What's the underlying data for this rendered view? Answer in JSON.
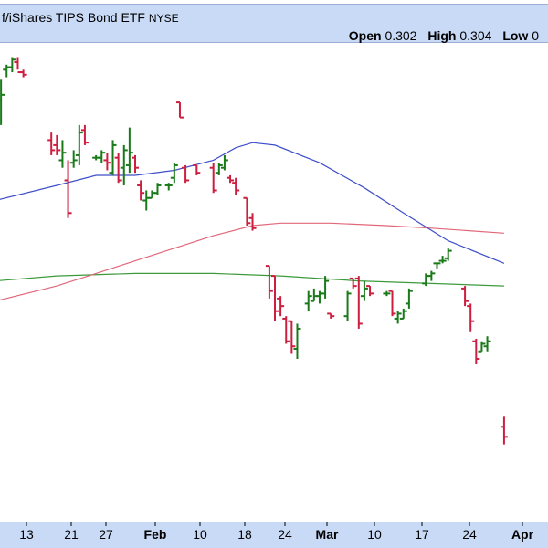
{
  "header": {
    "title": "f/iShares TIPS Bond ETF",
    "exchange": "NYSE",
    "open_label": "Open",
    "open_value": "0.302",
    "high_label": "High",
    "high_value": "0.304",
    "low_label": "Low",
    "low_value": "0"
  },
  "colors": {
    "up": "#1a7a1a",
    "down": "#cc1f3f",
    "ma_short": "#3f4fc8",
    "ma_mid": "#e0687a",
    "ma_long": "#3c9a3c",
    "header_bg": "#c9daf6"
  },
  "chart_data": {
    "type": "ohlc",
    "x_tick_labels": [
      "13",
      "21",
      "27",
      "Feb",
      "10",
      "18",
      "24",
      "Mar",
      "10",
      "17",
      "24",
      "Apr"
    ],
    "bars": [
      {
        "d": "Jan 09",
        "o": 0.293,
        "h": 0.2943,
        "l": 0.2936,
        "c": 0.294
      },
      {
        "d": "Jan 10",
        "o": 0.299,
        "h": 0.2998,
        "l": 0.298,
        "c": 0.2992
      },
      {
        "d": "Jan 11",
        "o": 0.3002,
        "h": 0.3004,
        "l": 0.2999,
        "c": 0.3003
      },
      {
        "d": "Jan 12",
        "o": 0.3003,
        "h": 0.3007,
        "l": 0.3001,
        "c": 0.3006
      },
      {
        "d": "Jan 13",
        "o": 0.3005,
        "h": 0.3007,
        "l": 0.3002,
        "c": 0.3001
      },
      {
        "d": "Jan 14",
        "o": 0.3001,
        "h": 0.3002,
        "l": 0.2999,
        "c": 0.3
      },
      {
        "d": "Jan 19",
        "o": 0.2974,
        "h": 0.2977,
        "l": 0.2968,
        "c": 0.297
      },
      {
        "d": "Jan 20",
        "o": 0.2972,
        "h": 0.2976,
        "l": 0.2968,
        "c": 0.297
      },
      {
        "d": "Jan 21",
        "o": 0.2966,
        "h": 0.2974,
        "l": 0.2963,
        "c": 0.2969
      },
      {
        "d": "Jan 22",
        "o": 0.2958,
        "h": 0.2966,
        "l": 0.2943,
        "c": 0.2945
      },
      {
        "d": "Jan 23",
        "o": 0.2965,
        "h": 0.297,
        "l": 0.2963,
        "c": 0.2966
      },
      {
        "d": "Jan 24",
        "o": 0.2968,
        "h": 0.298,
        "l": 0.2964,
        "c": 0.2977
      },
      {
        "d": "Jan 25",
        "o": 0.2978,
        "h": 0.298,
        "l": 0.2972,
        "c": 0.2973
      },
      {
        "d": "Jan 27",
        "o": 0.2967,
        "h": 0.2968,
        "l": 0.2966,
        "c": 0.2967
      },
      {
        "d": "Jan 28",
        "o": 0.2967,
        "h": 0.297,
        "l": 0.2965,
        "c": 0.2969
      },
      {
        "d": "Jan 29",
        "o": 0.2966,
        "h": 0.2969,
        "l": 0.2962,
        "c": 0.2965
      },
      {
        "d": "Jan 30",
        "o": 0.2961,
        "h": 0.2974,
        "l": 0.296,
        "c": 0.2972
      },
      {
        "d": "Jan 31",
        "o": 0.2967,
        "h": 0.2969,
        "l": 0.2957,
        "c": 0.2958
      },
      {
        "d": "Feb 01",
        "o": 0.2963,
        "h": 0.2972,
        "l": 0.2956,
        "c": 0.297
      },
      {
        "d": "Feb 02",
        "o": 0.2964,
        "h": 0.2979,
        "l": 0.2961,
        "c": 0.2969
      },
      {
        "d": "Feb 03",
        "o": 0.2967,
        "h": 0.2968,
        "l": 0.2961,
        "c": 0.2963
      },
      {
        "d": "Feb 04",
        "o": 0.2956,
        "h": 0.2958,
        "l": 0.295,
        "c": 0.2953
      },
      {
        "d": "Feb 05",
        "o": 0.295,
        "h": 0.2954,
        "l": 0.2946,
        "c": 0.2951
      },
      {
        "d": "Feb 06",
        "o": 0.2951,
        "h": 0.2954,
        "l": 0.2951,
        "c": 0.2953
      },
      {
        "d": "Feb 07",
        "o": 0.2953,
        "h": 0.2957,
        "l": 0.2952,
        "c": 0.2956
      },
      {
        "d": "Feb 09",
        "o": 0.2956,
        "h": 0.2957,
        "l": 0.2954,
        "c": 0.2956
      },
      {
        "d": "Feb 10",
        "o": 0.2959,
        "h": 0.2965,
        "l": 0.2957,
        "c": 0.2964
      },
      {
        "d": "Feb 11",
        "o": 0.2989,
        "h": 0.2989,
        "l": 0.2983,
        "c": 0.2983
      },
      {
        "d": "Feb 12",
        "o": 0.2963,
        "h": 0.2964,
        "l": 0.2957,
        "c": 0.2958
      },
      {
        "d": "Feb 14",
        "o": 0.2964,
        "h": 0.2964,
        "l": 0.296,
        "c": 0.2961
      },
      {
        "d": "Feb 17",
        "o": 0.2963,
        "h": 0.2965,
        "l": 0.2953,
        "c": 0.2954
      },
      {
        "d": "Feb 18",
        "o": 0.2961,
        "h": 0.2965,
        "l": 0.296,
        "c": 0.2964
      },
      {
        "d": "Feb 19",
        "o": 0.2963,
        "h": 0.2968,
        "l": 0.2962,
        "c": 0.2966
      },
      {
        "d": "Feb 20",
        "o": 0.2959,
        "h": 0.296,
        "l": 0.2957,
        "c": 0.2958
      },
      {
        "d": "Feb 21",
        "o": 0.2957,
        "h": 0.2959,
        "l": 0.2952,
        "c": 0.2954
      },
      {
        "d": "Feb 23",
        "o": 0.2951,
        "h": 0.2951,
        "l": 0.294,
        "c": 0.2941
      },
      {
        "d": "Feb 24",
        "o": 0.2943,
        "h": 0.2945,
        "l": 0.2938,
        "c": 0.2939
      },
      {
        "d": "Feb 27",
        "o": 0.2924,
        "h": 0.2924,
        "l": 0.2911,
        "c": 0.2914
      },
      {
        "d": "Feb 28",
        "o": 0.292,
        "h": 0.292,
        "l": 0.2902,
        "c": 0.2906
      },
      {
        "d": "Mar 01",
        "o": 0.2911,
        "h": 0.2912,
        "l": 0.2904,
        "c": 0.2908
      },
      {
        "d": "Mar 02",
        "o": 0.2903,
        "h": 0.2904,
        "l": 0.2893,
        "c": 0.2894
      },
      {
        "d": "Mar 03",
        "o": 0.2902,
        "h": 0.2902,
        "l": 0.2889,
        "c": 0.2892
      },
      {
        "d": "Mar 04",
        "o": 0.2891,
        "h": 0.2901,
        "l": 0.2887,
        "c": 0.2899
      },
      {
        "d": "Mar 06",
        "o": 0.2909,
        "h": 0.2914,
        "l": 0.2906,
        "c": 0.2912
      },
      {
        "d": "Mar 07",
        "o": 0.291,
        "h": 0.2915,
        "l": 0.291,
        "c": 0.2912
      },
      {
        "d": "Mar 08",
        "o": 0.2912,
        "h": 0.2914,
        "l": 0.2909,
        "c": 0.2913
      },
      {
        "d": "Mar 09",
        "o": 0.2913,
        "h": 0.292,
        "l": 0.2911,
        "c": 0.2918
      },
      {
        "d": "Mar 10",
        "o": 0.2905,
        "h": 0.2905,
        "l": 0.2903,
        "c": 0.2904
      },
      {
        "d": "Mar 13",
        "o": 0.2904,
        "h": 0.2914,
        "l": 0.2902,
        "c": 0.2913
      },
      {
        "d": "Mar 14",
        "o": 0.2919,
        "h": 0.2919,
        "l": 0.2915,
        "c": 0.2916
      },
      {
        "d": "Mar 15",
        "o": 0.2919,
        "h": 0.292,
        "l": 0.2899,
        "c": 0.2901
      },
      {
        "d": "Mar 16",
        "o": 0.2912,
        "h": 0.2918,
        "l": 0.291,
        "c": 0.2915
      },
      {
        "d": "Mar 17",
        "o": 0.2916,
        "h": 0.2916,
        "l": 0.2912,
        "c": 0.2913
      },
      {
        "d": "Mar 20",
        "o": 0.2913,
        "h": 0.2914,
        "l": 0.2912,
        "c": 0.2913
      },
      {
        "d": "Mar 21",
        "o": 0.2914,
        "h": 0.2914,
        "l": 0.2904,
        "c": 0.2905
      },
      {
        "d": "Mar 22",
        "o": 0.2903,
        "h": 0.2906,
        "l": 0.2901,
        "c": 0.2905
      },
      {
        "d": "Mar 23",
        "o": 0.2903,
        "h": 0.2907,
        "l": 0.2903,
        "c": 0.2906
      },
      {
        "d": "Mar 24",
        "o": 0.2909,
        "h": 0.2915,
        "l": 0.2907,
        "c": 0.2914
      },
      {
        "d": "Mar 27",
        "o": 0.2917,
        "h": 0.2921,
        "l": 0.2916,
        "c": 0.292
      },
      {
        "d": "Mar 28",
        "o": 0.292,
        "h": 0.2922,
        "l": 0.2918,
        "c": 0.2921
      },
      {
        "d": "Mar 29",
        "o": 0.2925,
        "h": 0.2925,
        "l": 0.2923,
        "c": 0.2925
      },
      {
        "d": "Mar 30",
        "o": 0.2926,
        "h": 0.2928,
        "l": 0.2925,
        "c": 0.2926
      },
      {
        "d": "Mar 31",
        "o": 0.2927,
        "h": 0.2931,
        "l": 0.2926,
        "c": 0.293
      },
      {
        "d": "Apr 03",
        "o": 0.2915,
        "h": 0.2916,
        "l": 0.2908,
        "c": 0.291
      },
      {
        "d": "Apr 04",
        "o": 0.2908,
        "h": 0.2909,
        "l": 0.2898,
        "c": 0.2902
      },
      {
        "d": "Apr 05",
        "o": 0.2894,
        "h": 0.2895,
        "l": 0.2885,
        "c": 0.2887
      },
      {
        "d": "Apr 06",
        "o": 0.289,
        "h": 0.2894,
        "l": 0.289,
        "c": 0.2893
      },
      {
        "d": "Apr 07",
        "o": 0.2892,
        "h": 0.2896,
        "l": 0.289,
        "c": 0.2894
      },
      {
        "d": "Apr 10",
        "o": 0.286,
        "h": 0.2864,
        "l": 0.2853,
        "c": 0.2856
      }
    ],
    "ma_short": [
      {
        "d": "Jan 09",
        "v": 0.295
      },
      {
        "d": "Jan 20",
        "v": 0.2956
      },
      {
        "d": "Jan 27",
        "v": 0.296
      },
      {
        "d": "Feb 03",
        "v": 0.296
      },
      {
        "d": "Feb 10",
        "v": 0.2962
      },
      {
        "d": "Feb 17",
        "v": 0.2966
      },
      {
        "d": "Feb 21",
        "v": 0.2971
      },
      {
        "d": "Feb 24",
        "v": 0.2973
      },
      {
        "d": "Feb 28",
        "v": 0.2972
      },
      {
        "d": "Mar 08",
        "v": 0.2965
      },
      {
        "d": "Mar 16",
        "v": 0.2955
      },
      {
        "d": "Mar 23",
        "v": 0.2945
      },
      {
        "d": "Mar 31",
        "v": 0.2934
      },
      {
        "d": "Apr 10",
        "v": 0.2925
      }
    ],
    "ma_mid": [
      {
        "d": "Jan 09",
        "v": 0.291
      },
      {
        "d": "Jan 20",
        "v": 0.2916
      },
      {
        "d": "Jan 27",
        "v": 0.2921
      },
      {
        "d": "Feb 03",
        "v": 0.2926
      },
      {
        "d": "Feb 10",
        "v": 0.2931
      },
      {
        "d": "Feb 17",
        "v": 0.2936
      },
      {
        "d": "Feb 24",
        "v": 0.294
      },
      {
        "d": "Mar 01",
        "v": 0.2941
      },
      {
        "d": "Mar 10",
        "v": 0.2941
      },
      {
        "d": "Mar 20",
        "v": 0.294
      },
      {
        "d": "Mar 28",
        "v": 0.2939
      },
      {
        "d": "Apr 10",
        "v": 0.2937
      }
    ],
    "ma_long": [
      {
        "d": "Jan 09",
        "v": 0.2918
      },
      {
        "d": "Jan 20",
        "v": 0.292
      },
      {
        "d": "Feb 03",
        "v": 0.2921
      },
      {
        "d": "Feb 17",
        "v": 0.2921
      },
      {
        "d": "Mar 01",
        "v": 0.292
      },
      {
        "d": "Mar 15",
        "v": 0.2918
      },
      {
        "d": "Mar 28",
        "v": 0.2917
      },
      {
        "d": "Apr 10",
        "v": 0.2916
      }
    ]
  }
}
